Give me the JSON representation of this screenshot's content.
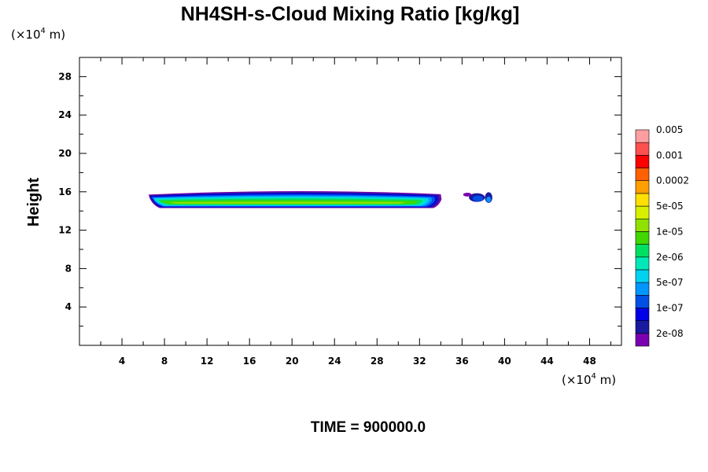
{
  "chart_data": {
    "type": "contour",
    "title": "NH4SH-s-Cloud Mixing Ratio [kg/kg]",
    "xlabel": "",
    "ylabel": "Height",
    "x_unit": {
      "prefix": "(×10",
      "exp": "4",
      "suffix": " m)"
    },
    "y_unit": {
      "prefix": "(×10",
      "exp": "4",
      "suffix": " m)"
    },
    "xlim": [
      0,
      51
    ],
    "ylim": [
      0,
      30
    ],
    "xticks": [
      4,
      8,
      12,
      16,
      20,
      24,
      28,
      32,
      36,
      40,
      44,
      48
    ],
    "yticks": [
      4,
      8,
      12,
      16,
      20,
      24,
      28
    ],
    "colorbar": {
      "colors": [
        "#7a00b0",
        "#1a1aa0",
        "#0000e6",
        "#0050e6",
        "#0096ff",
        "#00d2f0",
        "#00e8b8",
        "#00e060",
        "#40d800",
        "#90e000",
        "#d8f000",
        "#ffe000",
        "#ffa000",
        "#ff6000",
        "#ff0000",
        "#ff5050",
        "#ff9ea0"
      ],
      "labels": [
        "2e-08",
        "1e-07",
        "5e-07",
        "2e-06",
        "1e-05",
        "5e-05",
        "0.0002",
        "0.001",
        "0.005"
      ]
    },
    "cloud_layers": [
      {
        "color": "#7a00b0",
        "x0": 6.5,
        "x1": 34.0,
        "y_top": 15.95,
        "y_bot": 14.3
      },
      {
        "color": "#1a1aa0",
        "x0": 6.6,
        "x1": 33.8,
        "y_top": 15.85,
        "y_bot": 14.35
      },
      {
        "color": "#0000e6",
        "x0": 6.7,
        "x1": 33.6,
        "y_top": 15.75,
        "y_bot": 14.4
      },
      {
        "color": "#0050e6",
        "x0": 6.8,
        "x1": 33.4,
        "y_top": 15.65,
        "y_bot": 14.45
      },
      {
        "color": "#0096ff",
        "x0": 6.9,
        "x1": 33.1,
        "y_top": 15.55,
        "y_bot": 14.5
      },
      {
        "color": "#00d2f0",
        "x0": 7.0,
        "x1": 32.8,
        "y_top": 15.45,
        "y_bot": 14.55
      },
      {
        "color": "#00e8b8",
        "x0": 7.2,
        "x1": 32.5,
        "y_top": 15.35,
        "y_bot": 14.6
      },
      {
        "color": "#00e060",
        "x0": 7.4,
        "x1": 32.2,
        "y_top": 15.25,
        "y_bot": 14.65
      },
      {
        "color": "#40d800",
        "x0": 7.6,
        "x1": 31.8,
        "y_top": 15.1,
        "y_bot": 14.7
      },
      {
        "color": "#90e000",
        "x0": 8.5,
        "x1": 30.5,
        "y_top": 14.95,
        "y_bot": 14.75
      }
    ],
    "cloud_blobs": [
      {
        "x": 37.4,
        "y": 15.4,
        "rx": 0.75,
        "ry": 0.45,
        "color": "#1a1aa0"
      },
      {
        "x": 37.5,
        "y": 15.3,
        "rx": 0.5,
        "ry": 0.3,
        "color": "#0050e6"
      },
      {
        "x": 38.5,
        "y": 15.4,
        "rx": 0.35,
        "ry": 0.55,
        "color": "#1a1aa0"
      },
      {
        "x": 38.5,
        "y": 15.2,
        "rx": 0.22,
        "ry": 0.3,
        "color": "#0096ff"
      },
      {
        "x": 36.5,
        "y": 15.7,
        "rx": 0.4,
        "ry": 0.2,
        "color": "#7a00b0"
      }
    ],
    "time_label": "TIME = 900000.0"
  }
}
